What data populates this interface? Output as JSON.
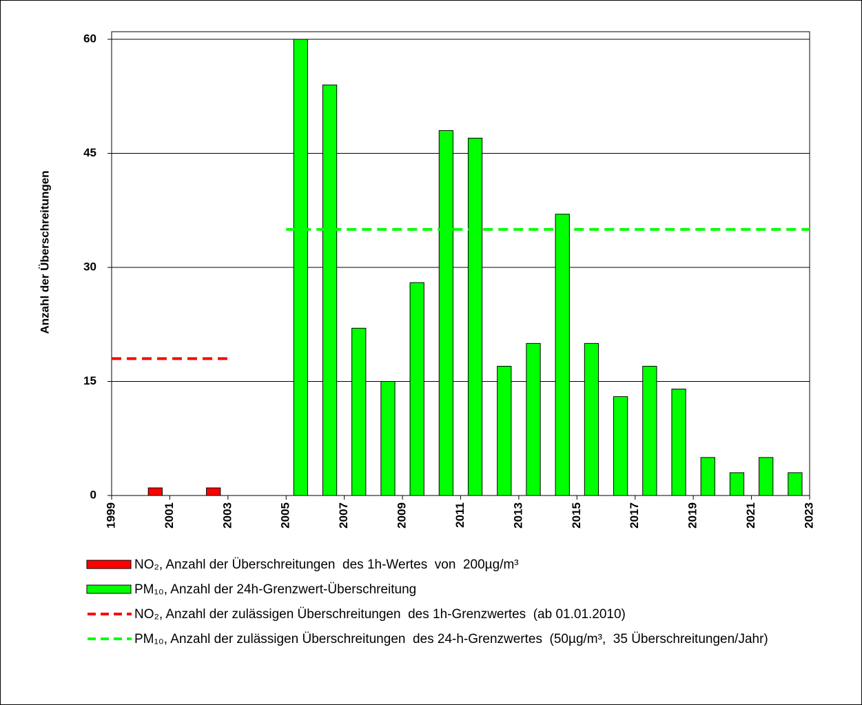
{
  "chart_data": {
    "type": "bar",
    "ylabel": "Anzahl der Überschreitungen",
    "xlim": [
      1999,
      2023
    ],
    "xticks": [
      1999,
      2001,
      2003,
      2005,
      2007,
      2009,
      2011,
      2013,
      2015,
      2017,
      2019,
      2021,
      2023
    ],
    "ylim": [
      0,
      61
    ],
    "yticks": [
      0,
      15,
      30,
      45,
      60
    ],
    "grid": true,
    "legend": "bottom",
    "series": [
      {
        "name": "NO₂, Anzahl der Überschreitungen  des 1h-Wertes  von  200µg/m³",
        "type": "bar",
        "color": "#ff0000",
        "x": [
          2000,
          2002
        ],
        "values": [
          1,
          1
        ]
      },
      {
        "name": "PM₁₀, Anzahl der 24h-Grenzwert-Überschreitung",
        "type": "bar",
        "color": "#00ff00",
        "x": [
          2005,
          2006,
          2007,
          2008,
          2009,
          2010,
          2011,
          2012,
          2013,
          2014,
          2015,
          2016,
          2017,
          2018,
          2019,
          2020,
          2021,
          2022
        ],
        "values": [
          60,
          54,
          22,
          15,
          28,
          48,
          47,
          17,
          20,
          37,
          20,
          13,
          17,
          14,
          5,
          3,
          5,
          3
        ]
      },
      {
        "name": "NO₂, Anzahl der zulässigen Überschreitungen  des 1h-Grenzwertes  (ab 01.01.2010)",
        "type": "line",
        "color": "#ff0000",
        "x": [
          1999,
          2003
        ],
        "values": [
          18,
          18
        ]
      },
      {
        "name": "PM₁₀, Anzahl der zulässigen Überschreitungen  des 24-h-Grenzwertes  (50µg/m³,  35 Überschreitungen/Jahr)",
        "type": "line",
        "color": "#00ff00",
        "x": [
          2005,
          2023
        ],
        "values": [
          35,
          35
        ]
      }
    ]
  }
}
